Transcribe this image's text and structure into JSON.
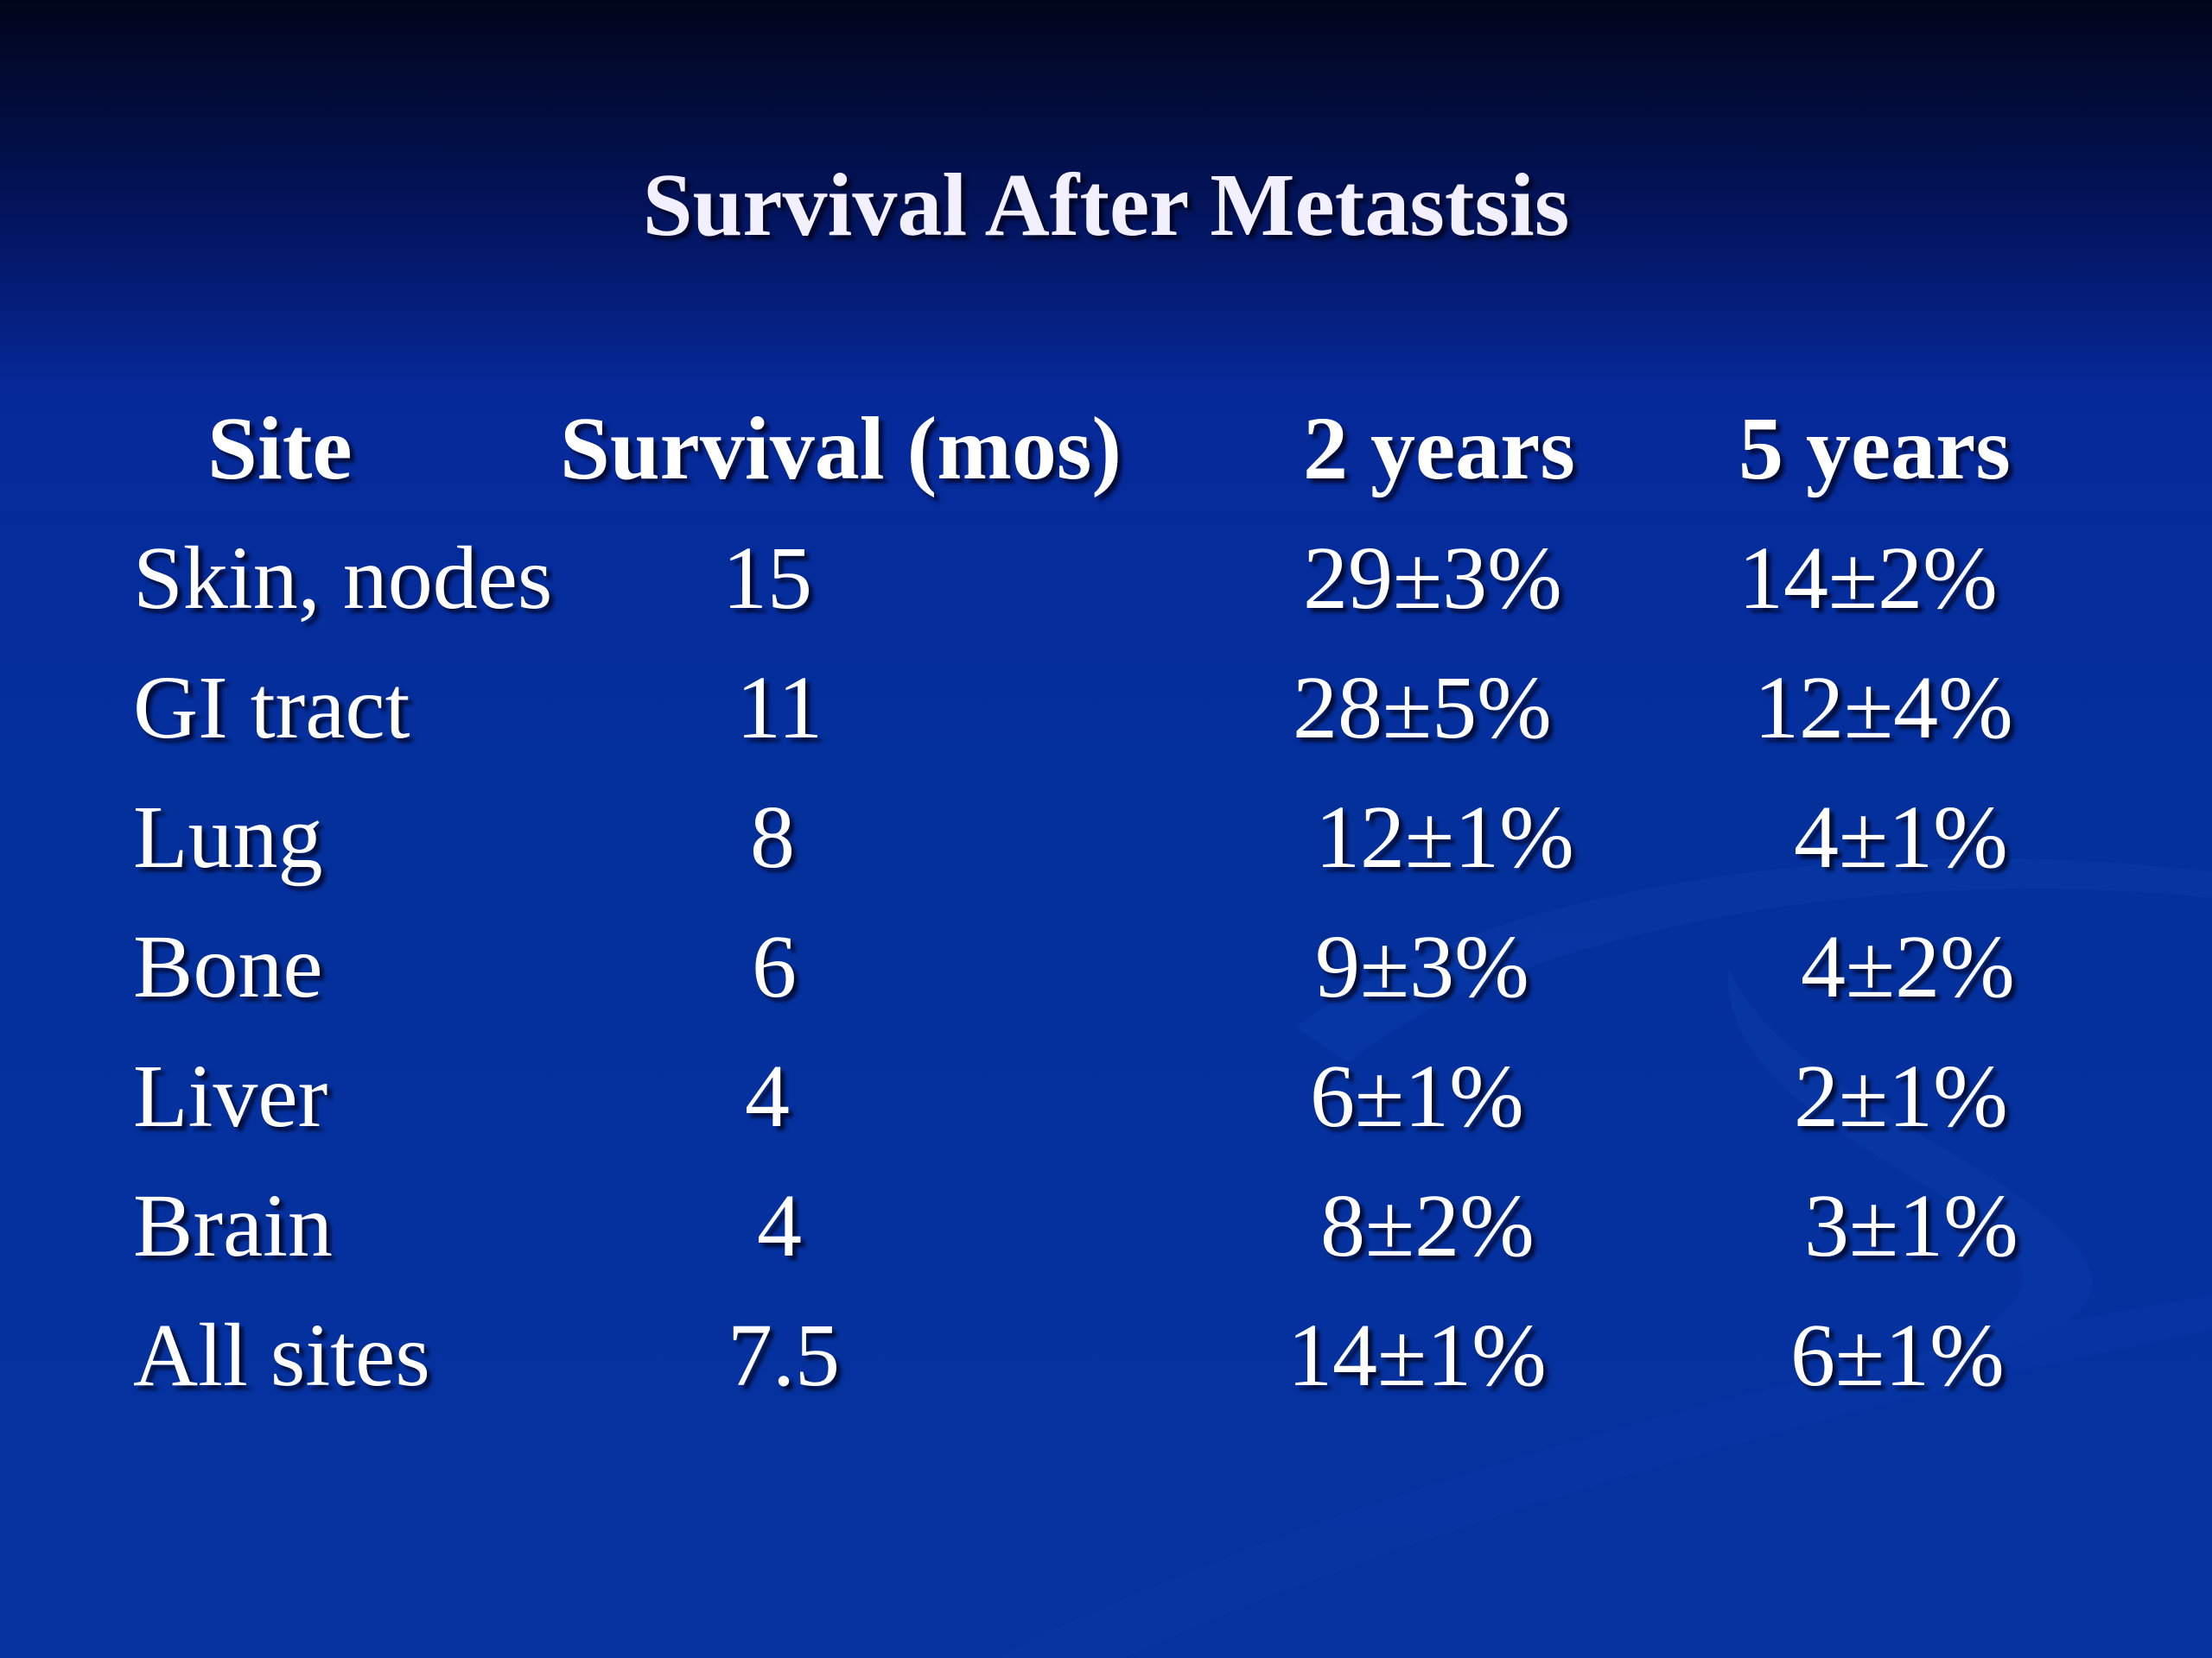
{
  "title": "Survival After Metastsis",
  "table": {
    "headers": [
      "Site",
      "Survival (mos)",
      "2 years",
      "5 years"
    ],
    "rows": [
      [
        "Skin, nodes",
        "15",
        "29±3%",
        "14±2%"
      ],
      [
        "GI tract",
        "11",
        "28±5%",
        "12±4%"
      ],
      [
        "Lung",
        "8",
        "12±1%",
        "4±1%"
      ],
      [
        "Bone",
        "6",
        "9±3%",
        "4±2%"
      ],
      [
        "Liver",
        "4",
        "6±1%",
        "2±1%"
      ],
      [
        "Brain",
        "4",
        "8±2%",
        "3±1%"
      ],
      [
        "All sites",
        "7.5",
        "14±1%",
        "6±1%"
      ]
    ]
  },
  "colors": {
    "background_top": "#01051a",
    "background_main": "#05329f",
    "text": "#ffffff"
  }
}
